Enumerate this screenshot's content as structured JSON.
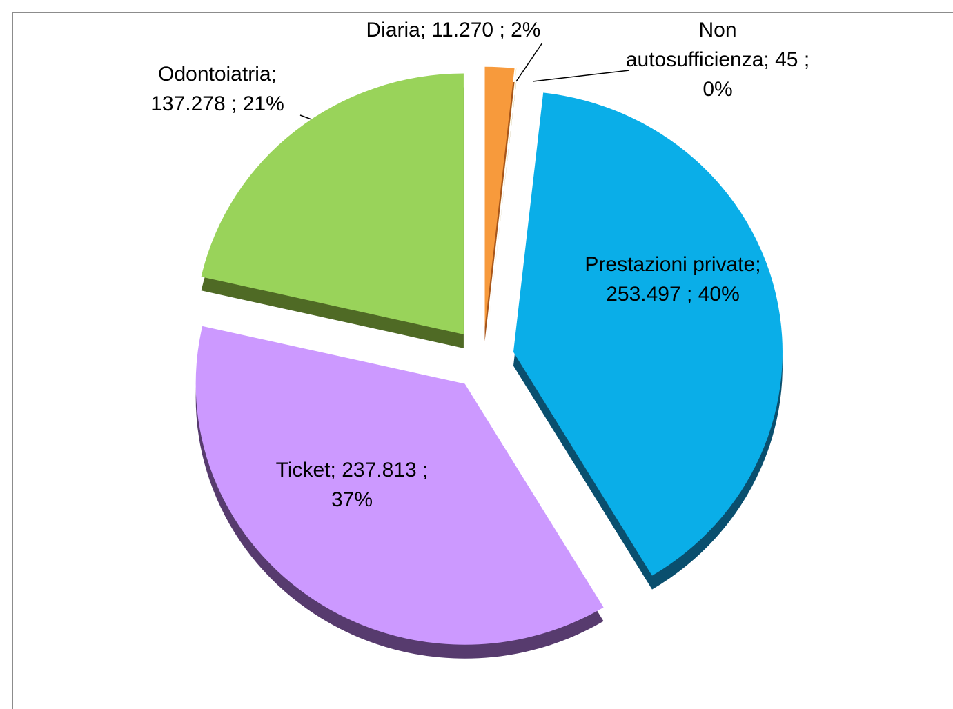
{
  "chart_data": {
    "type": "pie",
    "categories": [
      "Diaria",
      "Non autosufficienza",
      "Prestazioni private",
      "Ticket",
      "Odontoiatria"
    ],
    "values": [
      11270,
      45,
      253497,
      237813,
      137278
    ],
    "value_labels": [
      "11.270",
      "45",
      "253.497",
      "237.813",
      "137.278"
    ],
    "percents": [
      2,
      0,
      40,
      37,
      21
    ],
    "percent_labels": [
      "2%",
      "0%",
      "40%",
      "37%",
      "21%"
    ],
    "separator": ";",
    "colors": [
      "#f79a3c",
      "#e8c020",
      "#0aaee8",
      "#cc99ff",
      "#99d35a"
    ],
    "side_colors": [
      "#a8561a",
      "#8a6c08",
      "#0a4f6e",
      "#573b6e",
      "#4f6a25"
    ]
  }
}
